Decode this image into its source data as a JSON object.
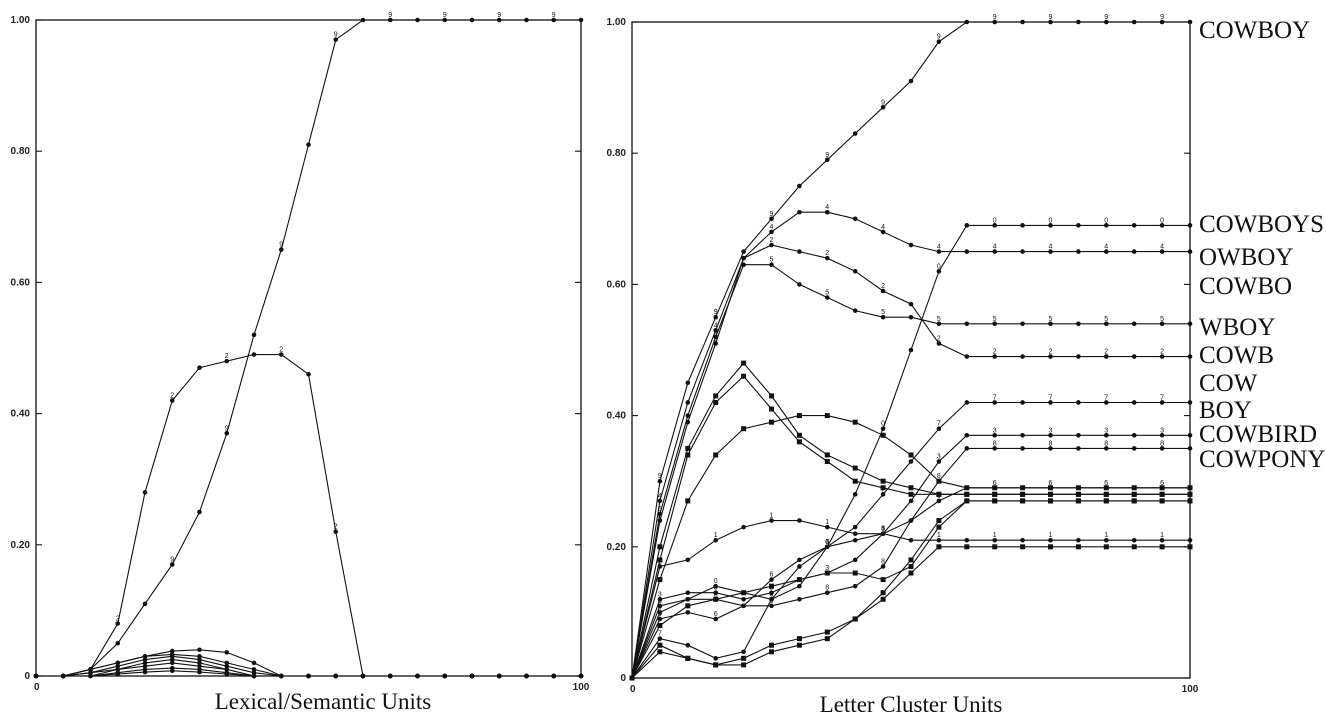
{
  "chart_data": [
    {
      "type": "line",
      "xlabel": "Lexical/Semantic Units",
      "ylabel": "",
      "xlim": [
        0,
        100
      ],
      "ylim": [
        0,
        1
      ],
      "x_tick_labels": [
        "0",
        "100"
      ],
      "y_tick_labels": [
        "0",
        "0.20",
        "0.40",
        "0.60",
        "0.80",
        "1.00"
      ],
      "x": [
        0,
        5,
        10,
        15,
        20,
        25,
        30,
        35,
        40,
        45,
        50,
        55,
        60,
        65,
        70,
        75,
        80,
        85,
        90,
        95,
        100
      ],
      "series": [
        {
          "marker": "9",
          "values": [
            0,
            0,
            0.01,
            0.05,
            0.11,
            0.17,
            0.25,
            0.37,
            0.52,
            0.65,
            0.81,
            0.97,
            1.0,
            1.0,
            1.0,
            1.0,
            1.0,
            1.0,
            1.0,
            1.0,
            1.0
          ]
        },
        {
          "marker": "2",
          "values": [
            0,
            0,
            0.01,
            0.08,
            0.28,
            0.42,
            0.47,
            0.48,
            0.49,
            0.49,
            0.46,
            0.22,
            0,
            0,
            0,
            0,
            0,
            0,
            0,
            0,
            0
          ]
        },
        {
          "marker": "1",
          "values": [
            0,
            0,
            0.01,
            0.02,
            0.03,
            0.038,
            0.04,
            0.036,
            0.02,
            0,
            0,
            0,
            0,
            0,
            0,
            0,
            0,
            0,
            0,
            0,
            0
          ]
        },
        {
          "marker": "4",
          "values": [
            0,
            0,
            0.01,
            0.02,
            0.03,
            0.033,
            0.03,
            0.02,
            0.01,
            0,
            0,
            0,
            0,
            0,
            0,
            0,
            0,
            0,
            0,
            0,
            0
          ]
        },
        {
          "marker": "3",
          "values": [
            0,
            0,
            0.005,
            0.015,
            0.025,
            0.03,
            0.025,
            0.015,
            0.005,
            0,
            0,
            0,
            0,
            0,
            0,
            0,
            0,
            0,
            0,
            0,
            0
          ]
        },
        {
          "marker": "5",
          "values": [
            0,
            0,
            0.005,
            0.01,
            0.02,
            0.025,
            0.02,
            0.01,
            0,
            0,
            0,
            0,
            0,
            0,
            0,
            0,
            0,
            0,
            0,
            0,
            0
          ]
        },
        {
          "marker": "6",
          "values": [
            0,
            0,
            0,
            0.01,
            0.015,
            0.02,
            0.015,
            0.01,
            0,
            0,
            0,
            0,
            0,
            0,
            0,
            0,
            0,
            0,
            0,
            0,
            0
          ]
        },
        {
          "marker": "7",
          "values": [
            0,
            0,
            0,
            0.005,
            0.01,
            0.012,
            0.01,
            0.005,
            0,
            0,
            0,
            0,
            0,
            0,
            0,
            0,
            0,
            0,
            0,
            0,
            0
          ]
        },
        {
          "marker": "8",
          "values": [
            0,
            0,
            0,
            0.003,
            0.006,
            0.008,
            0.006,
            0.003,
            0,
            0,
            0,
            0,
            0,
            0,
            0,
            0,
            0,
            0,
            0,
            0,
            0
          ]
        }
      ]
    },
    {
      "type": "line",
      "xlabel": "Letter Cluster Units",
      "ylabel": "",
      "xlim": [
        0,
        100
      ],
      "ylim": [
        0,
        1
      ],
      "x_tick_labels": [
        "0",
        "100"
      ],
      "y_tick_labels": [
        "0",
        "0.20",
        "0.40",
        "0.60",
        "0.80",
        "1.00"
      ],
      "x": [
        0,
        5,
        10,
        15,
        20,
        25,
        30,
        35,
        40,
        45,
        50,
        55,
        60,
        65,
        70,
        75,
        80,
        85,
        90,
        95,
        100
      ],
      "series": [
        {
          "name": "COWBOY",
          "marker": "9",
          "values": [
            0,
            0.3,
            0.45,
            0.55,
            0.65,
            0.7,
            0.75,
            0.79,
            0.83,
            0.87,
            0.91,
            0.97,
            1.0,
            1.0,
            1.0,
            1.0,
            1.0,
            1.0,
            1.0,
            1.0,
            1.0
          ]
        },
        {
          "name": "COWBOYS",
          "marker": "0",
          "values": [
            0,
            0.1,
            0.12,
            0.14,
            0.13,
            0.12,
            0.14,
            0.2,
            0.28,
            0.38,
            0.5,
            0.62,
            0.69,
            0.69,
            0.69,
            0.69,
            0.69,
            0.69,
            0.69,
            0.69,
            0.69
          ]
        },
        {
          "name": "OWBOY",
          "marker": "4",
          "values": [
            0,
            0.27,
            0.42,
            0.53,
            0.64,
            0.68,
            0.71,
            0.71,
            0.7,
            0.68,
            0.66,
            0.65,
            0.65,
            0.65,
            0.65,
            0.65,
            0.65,
            0.65,
            0.65,
            0.65,
            0.65
          ]
        },
        {
          "name": "COWBO",
          "marker": "5",
          "values": [
            0,
            0.25,
            0.4,
            0.52,
            0.63,
            0.63,
            0.6,
            0.58,
            0.56,
            0.55,
            0.55,
            0.54,
            0.54,
            0.54,
            0.54,
            0.54,
            0.54,
            0.54,
            0.54,
            0.54,
            0.54
          ]
        },
        {
          "name": "WBOY",
          "marker": "2",
          "values": [
            0,
            0.24,
            0.39,
            0.51,
            0.64,
            0.66,
            0.65,
            0.64,
            0.62,
            0.59,
            0.57,
            0.51,
            0.49,
            0.49,
            0.49,
            0.49,
            0.49,
            0.49,
            0.49,
            0.49,
            0.49
          ]
        },
        {
          "name": "COWB",
          "marker": "1",
          "values": [
            0,
            0.17,
            0.18,
            0.21,
            0.23,
            0.24,
            0.24,
            0.23,
            0.22,
            0.22,
            0.21,
            0.21,
            0.21,
            0.21,
            0.21,
            0.21,
            0.21,
            0.21,
            0.21,
            0.21,
            0.21
          ]
        },
        {
          "name": "COW",
          "marker": "3",
          "values": [
            0,
            0.12,
            0.13,
            0.13,
            0.12,
            0.13,
            0.15,
            0.16,
            0.18,
            0.22,
            0.27,
            0.33,
            0.37,
            0.37,
            0.37,
            0.37,
            0.37,
            0.37,
            0.37,
            0.37,
            0.37
          ]
        },
        {
          "name": "BOY",
          "marker": "7",
          "values": [
            0,
            0.06,
            0.05,
            0.03,
            0.04,
            0.12,
            0.17,
            0.2,
            0.23,
            0.28,
            0.33,
            0.38,
            0.42,
            0.42,
            0.42,
            0.42,
            0.42,
            0.42,
            0.42,
            0.42,
            0.42
          ]
        },
        {
          "name": "COWBIRD",
          "marker": "6",
          "values": [
            0,
            0.09,
            0.1,
            0.09,
            0.11,
            0.15,
            0.18,
            0.2,
            0.21,
            0.22,
            0.24,
            0.27,
            0.29,
            0.29,
            0.29,
            0.29,
            0.29,
            0.29,
            0.29,
            0.29,
            0.29
          ]
        },
        {
          "name": "COWPONY",
          "marker": "8",
          "values": [
            0,
            0.11,
            0.12,
            0.12,
            0.11,
            0.11,
            0.12,
            0.13,
            0.14,
            0.17,
            0.24,
            0.3,
            0.35,
            0.35,
            0.35,
            0.35,
            0.35,
            0.35,
            0.35,
            0.35,
            0.35
          ]
        },
        {
          "marker": "■",
          "values": [
            0,
            0.15,
            0.27,
            0.34,
            0.38,
            0.39,
            0.4,
            0.4,
            0.39,
            0.37,
            0.34,
            0.3,
            0.29,
            0.29,
            0.29,
            0.29,
            0.29,
            0.29,
            0.29,
            0.29,
            0.29
          ]
        },
        {
          "marker": "■",
          "values": [
            0,
            0.2,
            0.35,
            0.43,
            0.48,
            0.43,
            0.37,
            0.34,
            0.32,
            0.3,
            0.29,
            0.28,
            0.28,
            0.28,
            0.28,
            0.28,
            0.28,
            0.28,
            0.28,
            0.28,
            0.28
          ]
        },
        {
          "marker": "■",
          "values": [
            0,
            0.18,
            0.34,
            0.42,
            0.46,
            0.41,
            0.36,
            0.33,
            0.3,
            0.29,
            0.28,
            0.28,
            0.28,
            0.28,
            0.28,
            0.28,
            0.28,
            0.28,
            0.28,
            0.28,
            0.28
          ]
        },
        {
          "marker": "■",
          "values": [
            0,
            0.05,
            0.03,
            0.02,
            0.02,
            0.04,
            0.05,
            0.06,
            0.09,
            0.13,
            0.18,
            0.24,
            0.27,
            0.27,
            0.27,
            0.27,
            0.27,
            0.27,
            0.27,
            0.27,
            0.27
          ]
        },
        {
          "marker": "■",
          "values": [
            0,
            0.04,
            0.03,
            0.02,
            0.03,
            0.05,
            0.06,
            0.07,
            0.09,
            0.12,
            0.16,
            0.2,
            0.2,
            0.2,
            0.2,
            0.2,
            0.2,
            0.2,
            0.2,
            0.2,
            0.2
          ]
        },
        {
          "marker": "■",
          "values": [
            0,
            0.08,
            0.11,
            0.12,
            0.13,
            0.14,
            0.15,
            0.16,
            0.16,
            0.15,
            0.17,
            0.23,
            0.27,
            0.27,
            0.27,
            0.27,
            0.27,
            0.27,
            0.27,
            0.27,
            0.27
          ]
        }
      ]
    }
  ]
}
